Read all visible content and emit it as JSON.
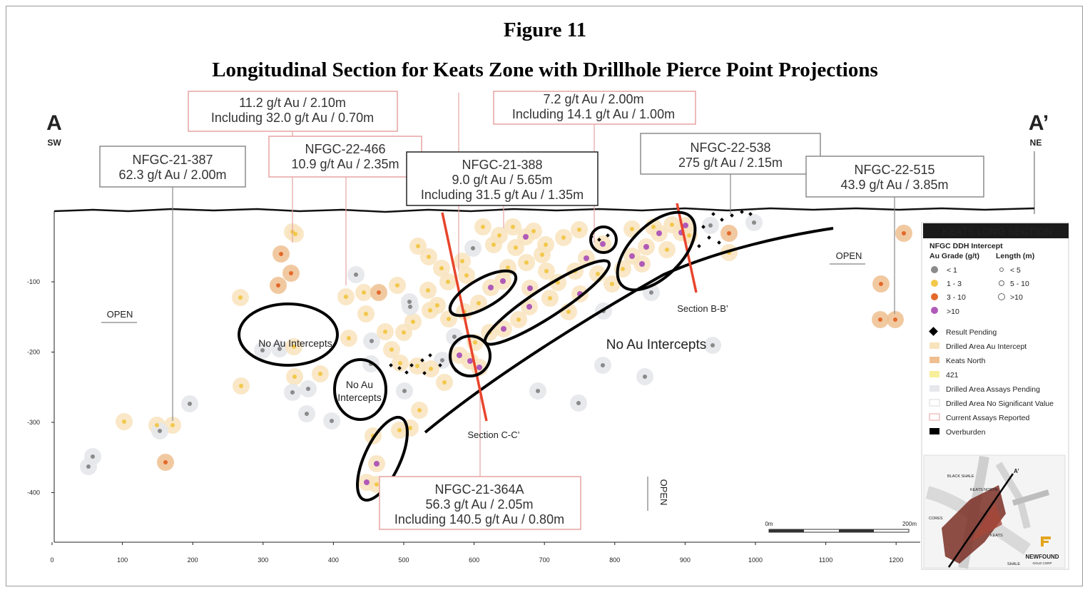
{
  "figure": {
    "title": "Figure 11",
    "subtitle": "Longitudinal Section for Keats Zone with Drillhole Pierce Point Projections"
  },
  "ends": {
    "left_letter": "A",
    "left_dir": "SW",
    "right_letter": "A’",
    "right_dir": "NE"
  },
  "x_ticks": [
    "0",
    "100",
    "200",
    "300",
    "400",
    "500",
    "600",
    "700",
    "800",
    "900",
    "1000",
    "1100",
    "1200"
  ],
  "y_ticks": [
    "-100",
    "-200",
    "-300",
    "-400"
  ],
  "callouts": [
    {
      "lines": [
        "11.2 g/t Au / 2.10m",
        "Including 32.0 g/t Au / 0.70m"
      ]
    },
    {
      "lines": [
        "7.2 g/t Au / 2.00m",
        "Including 14.1 g/t Au / 1.00m"
      ]
    },
    {
      "lines": [
        "NFGC-21-387",
        "62.3 g/t Au / 2.00m"
      ]
    },
    {
      "lines": [
        "NFGC-22-466",
        "10.9 g/t Au / 2.35m"
      ]
    },
    {
      "lines": [
        "NFGC-21-388",
        "9.0 g/t Au / 5.65m",
        "Including 31.5 g/t Au / 1.35m"
      ]
    },
    {
      "lines": [
        "NFGC-22-538",
        "275 g/t Au / 2.15m"
      ]
    },
    {
      "lines": [
        "NFGC-22-515",
        "43.9 g/t Au / 3.85m"
      ]
    },
    {
      "lines": [
        "NFGC-21-364A",
        "56.3 g/t Au / 2.05m",
        "Including 140.5 g/t Au / 0.80m"
      ]
    }
  ],
  "annotations": {
    "no_au_1": "No Au Intercepts",
    "no_au_2a": "No Au",
    "no_au_2b": "Intercepts",
    "no_au_3": "No Au Intercepts",
    "section_bb": "Section B-B’",
    "section_cc": "Section C-C’",
    "open_left": "OPEN",
    "open_right": "OPEN",
    "open_down": "OPEN"
  },
  "scale_bar": {
    "start": "0m",
    "end": "200m"
  },
  "legend": {
    "title": "KEATS LONG SECTION",
    "subtitle": "NFGC DDH Intercept",
    "grade_header": "Au Grade (g/t)",
    "length_header": "Length (m)",
    "grades": [
      {
        "label": "< 1",
        "color": "#8a8a8a"
      },
      {
        "label": "1 - 3",
        "color": "#f2c84b"
      },
      {
        "label": "3 - 10",
        "color": "#e3692b"
      },
      {
        "label": ">10",
        "color": "#b05ab8"
      }
    ],
    "lengths": [
      "< 5",
      "5 - 10",
      ">10"
    ],
    "items": [
      {
        "label": "Result Pending",
        "swatch": "diamond",
        "color": "#000000"
      },
      {
        "label": "Drilled Area Au Intercept",
        "swatch": "fill",
        "color": "#f8e3bd"
      },
      {
        "label": "Keats North",
        "swatch": "fill",
        "color": "#efbf91"
      },
      {
        "label": "421",
        "swatch": "fill",
        "color": "#f7ef9a"
      },
      {
        "label": "Drilled Area Assays Pending",
        "swatch": "fill",
        "color": "#e6e7ea"
      },
      {
        "label": "Drilled Area No Significant Value",
        "swatch": "outline",
        "color": "#d8d8d8"
      },
      {
        "label": "Current Assays Reported",
        "swatch": "outline",
        "color": "#e8a3a3"
      },
      {
        "label": "Overburden",
        "swatch": "fill",
        "color": "#000000"
      }
    ],
    "inset_labels": [
      "BLACK SHALE",
      "KEATS NORTH",
      "CORES",
      "KEATS",
      "SHALE",
      "A’"
    ],
    "logo_text": "NEWFOUND",
    "logo_sub": "GOLD CORP"
  },
  "colors": {
    "accent_blue": "#2d4b9b",
    "section_red": "#e8452c",
    "callout_border": "#e7a3a3"
  }
}
